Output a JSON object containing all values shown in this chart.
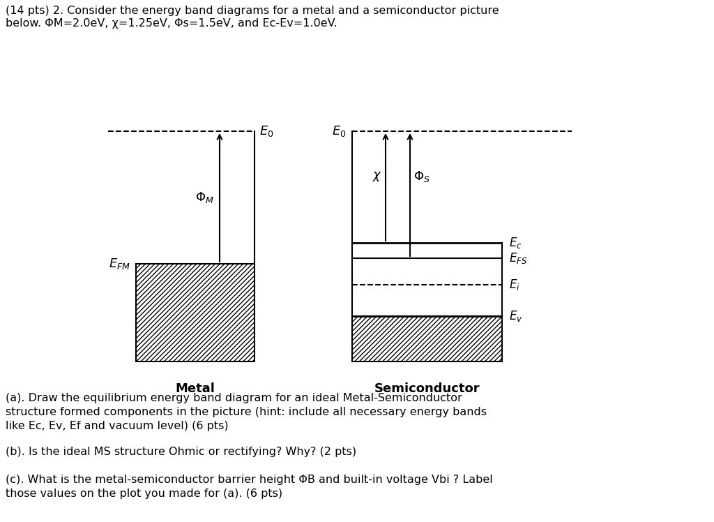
{
  "title_line1": "(14 pts) 2. Consider the energy band diagrams for a metal and a semiconductor picture",
  "title_line2": "below. ΦM=2.0eV, χ=1.25eV, Φs=1.5eV, and Ec-Ev=1.0eV.",
  "metal_label": "Metal",
  "semi_label": "Semiconductor",
  "question_a": "(a). Draw the equilibrium energy band diagram for an ideal Metal-Semiconductor\nstructure formed components in the picture (hint: include all necessary energy bands\nlike Ec, Ev, Ef and vacuum level) (6 pts)",
  "question_b": "(b). Is the ideal MS structure Ohmic or rectifying? Why? (2 pts)",
  "question_c": "(c). What is the metal-semiconductor barrier height ΦB and built-in voltage Vbi ? Label\nthose values on the plot you made for (a). (6 pts)",
  "bg_color": "#ffffff",
  "text_color": "#000000",
  "hatch_pattern": "/////"
}
